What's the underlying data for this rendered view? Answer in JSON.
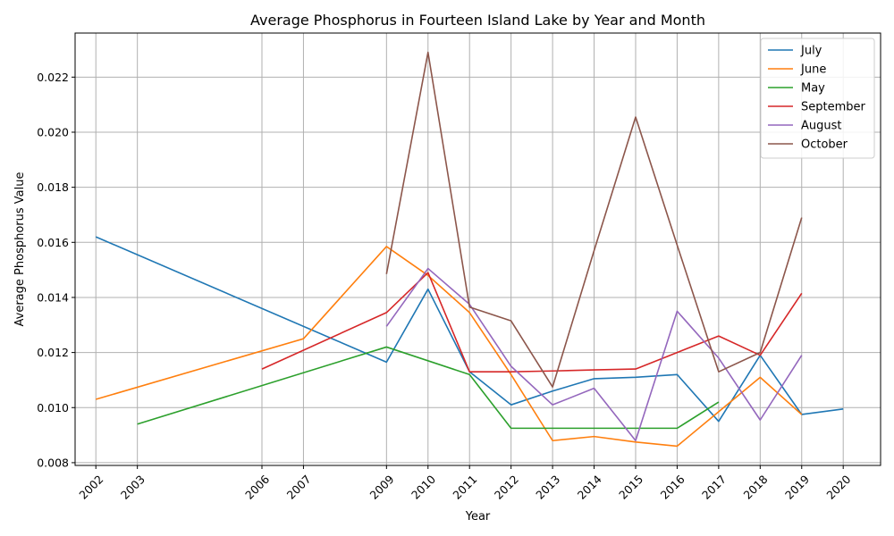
{
  "chart_data": {
    "type": "line",
    "title": "Average Phosphorus in Fourteen Island Lake by Year and Month",
    "xlabel": "Year",
    "ylabel": "Average Phosphorus Value",
    "xlim": [
      2001.5,
      2020.9
    ],
    "ylim": [
      0.0079,
      0.0236
    ],
    "yticks": [
      0.008,
      0.01,
      0.012,
      0.014,
      0.016,
      0.018,
      0.02,
      0.022
    ],
    "ytick_labels": [
      "0.008",
      "0.010",
      "0.012",
      "0.014",
      "0.016",
      "0.018",
      "0.020",
      "0.022"
    ],
    "xticks": [
      2002,
      2003,
      2006,
      2007,
      2009,
      2010,
      2011,
      2012,
      2013,
      2014,
      2015,
      2016,
      2017,
      2018,
      2019,
      2020
    ],
    "xtick_labels": [
      "2002",
      "2003",
      "2006",
      "2007",
      "2009",
      "2010",
      "2011",
      "2012",
      "2013",
      "2014",
      "2015",
      "2016",
      "2017",
      "2018",
      "2019",
      "2020"
    ],
    "grid": true,
    "legend_position": "top-right",
    "series": [
      {
        "name": "July",
        "color": "#1f77b4",
        "x": [
          2002,
          2009,
          2010,
          2011,
          2012,
          2013,
          2014,
          2015,
          2016,
          2017,
          2018,
          2019,
          2020
        ],
        "values": [
          0.0162,
          0.01165,
          0.0143,
          0.0113,
          0.0101,
          0.0106,
          0.01105,
          0.0111,
          0.0112,
          0.0095,
          0.0119,
          0.00975,
          0.00995
        ]
      },
      {
        "name": "June",
        "color": "#ff7f0e",
        "x": [
          2002,
          2007,
          2009,
          2010,
          2011,
          2012,
          2013,
          2014,
          2015,
          2016,
          2017,
          2018,
          2019
        ],
        "values": [
          0.0103,
          0.0125,
          0.01585,
          0.0148,
          0.01345,
          0.0112,
          0.0088,
          0.00895,
          0.00875,
          0.0086,
          0.00985,
          0.0111,
          0.00975
        ]
      },
      {
        "name": "May",
        "color": "#2ca02c",
        "x": [
          2003,
          2009,
          2011,
          2012,
          2013,
          2014,
          2015,
          2016,
          2017
        ],
        "values": [
          0.0094,
          0.0122,
          0.0112,
          0.00925,
          0.00925,
          0.00925,
          0.00925,
          0.00925,
          0.0102
        ]
      },
      {
        "name": "September",
        "color": "#d62728",
        "x": [
          2006,
          2009,
          2010,
          2011,
          2012,
          2013,
          2014,
          2015,
          2016,
          2017,
          2018,
          2019
        ],
        "values": [
          0.0114,
          0.01345,
          0.0149,
          0.0113,
          0.0113,
          0.01133,
          0.01137,
          0.0114,
          0.012,
          0.0126,
          0.0119,
          0.01415
        ]
      },
      {
        "name": "August",
        "color": "#9467bd",
        "x": [
          2009,
          2010,
          2011,
          2012,
          2013,
          2014,
          2015,
          2016,
          2017,
          2018,
          2019
        ],
        "values": [
          0.01295,
          0.01505,
          0.01375,
          0.0115,
          0.0101,
          0.0107,
          0.0088,
          0.0135,
          0.0118,
          0.00955,
          0.0119
        ]
      },
      {
        "name": "October",
        "color": "#8c564b",
        "x": [
          2009,
          2010,
          2011,
          2012,
          2013,
          2014,
          2015,
          2016,
          2017,
          2018,
          2019
        ],
        "values": [
          0.01485,
          0.0229,
          0.01365,
          0.01315,
          0.01075,
          0.0157,
          0.02055,
          0.0159,
          0.0113,
          0.012,
          0.0169
        ]
      }
    ]
  }
}
